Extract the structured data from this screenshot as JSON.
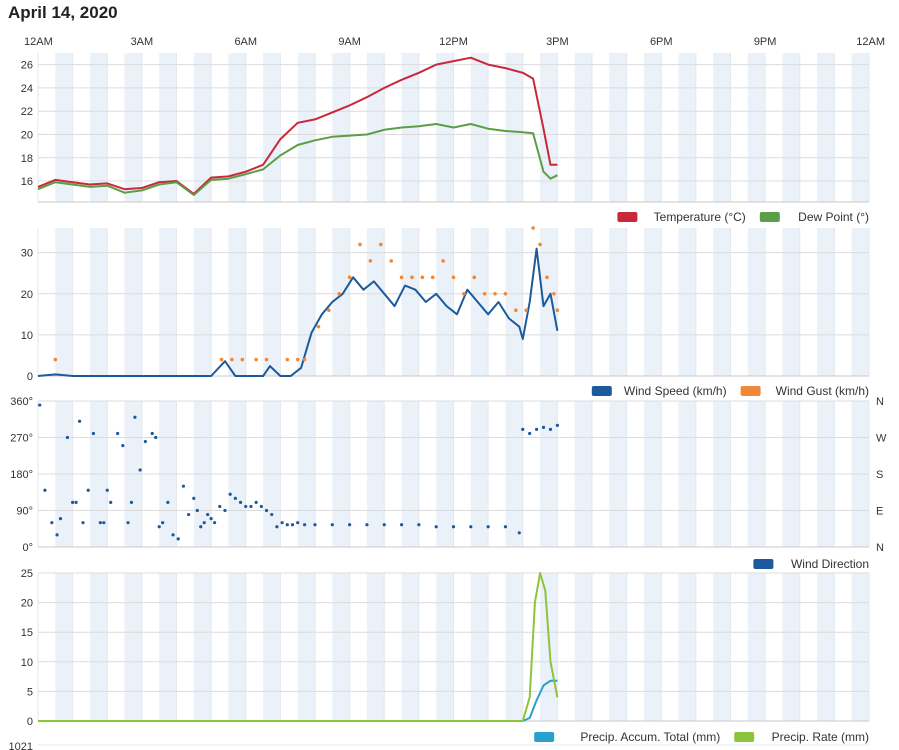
{
  "page": {
    "title": "April 14, 2020"
  },
  "time_axis": {
    "labels": [
      "12AM",
      "3AM",
      "6AM",
      "9AM",
      "12PM",
      "3PM",
      "6PM",
      "9PM",
      "12AM"
    ]
  },
  "colors": {
    "temperature": "#c8283a",
    "dew_point": "#5a9e46",
    "wind_speed": "#1c5a9c",
    "wind_gust": "#f0883a",
    "wind_direction": "#1c5a9c",
    "precip_total": "#2aa0cc",
    "precip_rate": "#8cc43c",
    "band": "#eaf1f8"
  },
  "chart_data": [
    {
      "type": "line",
      "xlabel": "",
      "ylabel": "",
      "x_unit": "hours since midnight",
      "ylim": [
        14.2,
        27
      ],
      "yticks": [
        16,
        18,
        20,
        22,
        24,
        26
      ],
      "legend_position": "bottom-right",
      "series": [
        {
          "name": "Temperature (°C)",
          "color_key": "temperature",
          "x": [
            0,
            0.5,
            1,
            1.5,
            2,
            2.5,
            3,
            3.5,
            4,
            4.5,
            5,
            5.5,
            6,
            6.5,
            7,
            7.5,
            8,
            8.5,
            9,
            9.5,
            10,
            10.5,
            11,
            11.5,
            12,
            12.5,
            13,
            13.5,
            14,
            14.3,
            14.6,
            14.8,
            15
          ],
          "y": [
            15.5,
            16.1,
            15.9,
            15.7,
            15.8,
            15.3,
            15.4,
            15.9,
            16.0,
            14.9,
            16.3,
            16.4,
            16.8,
            17.4,
            19.6,
            21.0,
            21.3,
            21.9,
            22.5,
            23.2,
            24.0,
            24.7,
            25.3,
            26.0,
            26.3,
            26.6,
            26.0,
            25.7,
            25.3,
            24.8,
            20.5,
            17.4,
            17.4
          ]
        },
        {
          "name": "Dew Point (°)",
          "color_key": "dew_point",
          "x": [
            0,
            0.5,
            1,
            1.5,
            2,
            2.5,
            3,
            3.5,
            4,
            4.5,
            5,
            5.5,
            6,
            6.5,
            7,
            7.5,
            8,
            8.5,
            9,
            9.5,
            10,
            10.5,
            11,
            11.5,
            12,
            12.5,
            13,
            13.5,
            14,
            14.3,
            14.6,
            14.8,
            15
          ],
          "y": [
            15.3,
            15.9,
            15.7,
            15.5,
            15.6,
            15.0,
            15.2,
            15.7,
            15.9,
            14.8,
            16.1,
            16.2,
            16.6,
            17.0,
            18.2,
            19.1,
            19.5,
            19.8,
            19.9,
            20.0,
            20.4,
            20.6,
            20.7,
            20.9,
            20.6,
            20.9,
            20.5,
            20.3,
            20.2,
            20.1,
            16.8,
            16.2,
            16.5
          ]
        }
      ]
    },
    {
      "type": "line",
      "xlabel": "",
      "ylabel": "",
      "x_unit": "hours since midnight",
      "ylim": [
        0,
        36
      ],
      "yticks": [
        0,
        10,
        20,
        30
      ],
      "legend_position": "bottom-right",
      "series": [
        {
          "name": "Wind Speed (km/h)",
          "color_key": "wind_speed",
          "style": "line",
          "x": [
            0,
            0.5,
            1,
            2,
            3,
            4,
            5,
            5.4,
            5.7,
            6,
            6.5,
            6.7,
            7,
            7.3,
            7.6,
            7.9,
            8.2,
            8.5,
            8.8,
            9.1,
            9.4,
            9.7,
            10,
            10.3,
            10.6,
            10.9,
            11.2,
            11.5,
            11.8,
            12.1,
            12.4,
            12.7,
            13.0,
            13.3,
            13.6,
            13.9,
            14.0,
            14.2,
            14.4,
            14.6,
            14.8,
            15.0
          ],
          "y": [
            0,
            0.4,
            0,
            0,
            0,
            0,
            0,
            3.6,
            0,
            0,
            0,
            2.4,
            0,
            0,
            2.0,
            10.5,
            15.0,
            18.0,
            20.0,
            24.0,
            21.0,
            23.0,
            20.0,
            17.0,
            22.0,
            21.0,
            18.0,
            20.0,
            17.0,
            15.0,
            21.0,
            18.0,
            15.0,
            18.0,
            14.0,
            12.0,
            9.0,
            18.0,
            31.0,
            17.0,
            20.0,
            11.0
          ]
        },
        {
          "name": "Wind Gust (km/h)",
          "color_key": "wind_gust",
          "style": "dots",
          "x": [
            0.5,
            5.3,
            5.6,
            5.9,
            6.3,
            6.6,
            7.2,
            7.5,
            7.7,
            8.1,
            8.4,
            8.7,
            9.0,
            9.3,
            9.6,
            9.9,
            10.2,
            10.5,
            10.8,
            11.1,
            11.4,
            11.7,
            12.0,
            12.3,
            12.6,
            12.9,
            13.2,
            13.5,
            13.8,
            14.1,
            14.3,
            14.5,
            14.7,
            14.9,
            15.0
          ],
          "y": [
            4,
            4,
            4,
            4,
            4,
            4,
            4,
            4,
            4,
            12,
            16,
            20,
            24,
            32,
            28,
            32,
            28,
            24,
            24,
            24,
            24,
            28,
            24,
            20,
            24,
            20,
            20,
            20,
            16,
            16,
            36,
            32,
            24,
            20,
            16
          ]
        }
      ]
    },
    {
      "type": "scatter",
      "xlabel": "",
      "ylabel": "",
      "x_unit": "hours since midnight",
      "ylim": [
        0,
        360
      ],
      "yticks": [
        0,
        90,
        180,
        270,
        360
      ],
      "ytick_labels": [
        "0°",
        "90°",
        "180°",
        "270°",
        "360°"
      ],
      "right_tick_labels": [
        "N",
        "E",
        "S",
        "W",
        "N"
      ],
      "legend_position": "bottom-right",
      "series": [
        {
          "name": "Wind Direction",
          "color_key": "wind_direction",
          "x": [
            0.05,
            0.2,
            0.4,
            0.55,
            0.65,
            0.85,
            1.0,
            1.1,
            1.2,
            1.3,
            1.45,
            1.6,
            1.8,
            1.9,
            2.0,
            2.1,
            2.3,
            2.45,
            2.6,
            2.7,
            2.8,
            2.95,
            3.1,
            3.3,
            3.4,
            3.5,
            3.6,
            3.75,
            3.9,
            4.05,
            4.2,
            4.35,
            4.5,
            4.6,
            4.7,
            4.8,
            4.9,
            5.0,
            5.1,
            5.25,
            5.4,
            5.55,
            5.7,
            5.85,
            6.0,
            6.15,
            6.3,
            6.45,
            6.6,
            6.75,
            6.9,
            7.05,
            7.2,
            7.35,
            7.5,
            7.7,
            8.0,
            8.5,
            9.0,
            9.5,
            10.0,
            10.5,
            11.0,
            11.5,
            12.0,
            12.5,
            13.0,
            13.5,
            13.9,
            14.0,
            14.2,
            14.4,
            14.6,
            14.8,
            15.0
          ],
          "y": [
            350,
            140,
            60,
            30,
            70,
            270,
            110,
            110,
            310,
            60,
            140,
            280,
            60,
            60,
            140,
            110,
            280,
            250,
            60,
            110,
            320,
            190,
            260,
            280,
            270,
            50,
            60,
            110,
            30,
            20,
            150,
            80,
            120,
            90,
            50,
            60,
            80,
            70,
            60,
            100,
            90,
            130,
            120,
            110,
            100,
            100,
            110,
            100,
            90,
            80,
            50,
            60,
            55,
            55,
            60,
            55,
            55,
            55,
            55,
            55,
            55,
            55,
            55,
            50,
            50,
            50,
            50,
            50,
            35,
            290,
            280,
            290,
            295,
            290,
            300
          ]
        }
      ]
    },
    {
      "type": "line",
      "xlabel": "",
      "ylabel": "",
      "x_unit": "hours since midnight",
      "ylim": [
        0,
        25
      ],
      "yticks": [
        0,
        5,
        10,
        15,
        20,
        25
      ],
      "legend_position": "bottom-right",
      "series": [
        {
          "name": "Precip. Accum. Total (mm)",
          "color_key": "precip_total",
          "x": [
            0,
            14.0,
            14.2,
            14.4,
            14.6,
            14.8,
            15.0
          ],
          "y": [
            0,
            0,
            0.5,
            3.5,
            6.0,
            6.8,
            6.8
          ]
        },
        {
          "name": "Precip. Rate (mm)",
          "color_key": "precip_rate",
          "x": [
            0,
            14.0,
            14.2,
            14.35,
            14.5,
            14.65,
            14.8,
            15.0
          ],
          "y": [
            0,
            0,
            4,
            20,
            25,
            22,
            10,
            4
          ]
        }
      ]
    }
  ],
  "panel5": {
    "first_tick": "1021"
  }
}
